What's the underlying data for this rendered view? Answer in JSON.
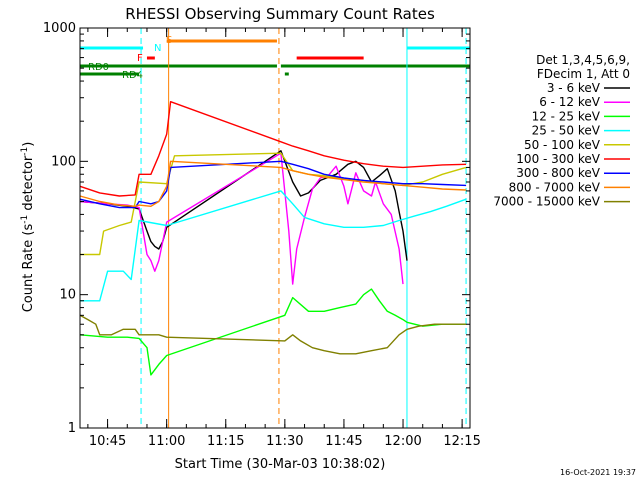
{
  "chart_data": {
    "type": "line",
    "title": "RHESSI Observing Summary Count Rates",
    "xlabel": "Start Time (30-Mar-03 10:38:02)",
    "ylabel_main": "Count Rate (s",
    "ylabel_sup1": "-1",
    "ylabel_mid": " detector",
    "ylabel_sup2": "-1",
    "ylabel_end": ")",
    "footer": "16-Oct-2021 19:37",
    "x_start_min": 638,
    "x_end_min": 737,
    "x_tick_minutes": [
      645,
      660,
      675,
      690,
      705,
      720,
      735
    ],
    "x_tick_labels": [
      "10:45",
      "11:00",
      "11:15",
      "11:30",
      "11:45",
      "12:00",
      "12:15"
    ],
    "y_scale": "log",
    "ylim": [
      1,
      1000
    ],
    "y_tick_values": [
      1,
      10,
      100,
      1000
    ],
    "y_tick_labels": [
      "1",
      "10",
      "100",
      "1000"
    ],
    "legend": {
      "header1": "Det 1,3,4,5,6,9,",
      "header2": "FDecim 1, Att 0",
      "items": [
        {
          "label": "3 - 6 keV",
          "color": "#000000"
        },
        {
          "label": "6 - 12 keV",
          "color": "#ff00ff"
        },
        {
          "label": "12 - 25 keV",
          "color": "#00ff00"
        },
        {
          "label": "25 - 50 keV",
          "color": "#00ffff"
        },
        {
          "label": "50 - 100 keV",
          "color": "#c8c800"
        },
        {
          "label": "100 - 300 keV",
          "color": "#ff0000"
        },
        {
          "label": "300 - 800 keV",
          "color": "#0000ff"
        },
        {
          "label": "800 - 7000 keV",
          "color": "#ff8000"
        },
        {
          "label": "7000 - 15000 keV",
          "color": "#808000"
        }
      ]
    },
    "flags": [
      {
        "label": "",
        "color": "#00ffff",
        "segments": [
          [
            638,
            654
          ],
          [
            721,
            737
          ]
        ]
      },
      {
        "label": "N",
        "color": "#00ffff",
        "segments": []
      },
      {
        "label": "S",
        "color": "#ff8000",
        "segments": [
          [
            660,
            688
          ]
        ]
      },
      {
        "label": "F",
        "color": "#ff0000",
        "segments": [
          [
            655,
            657
          ],
          [
            693,
            710
          ]
        ]
      },
      {
        "label": "RD0",
        "color": "#008000",
        "segments": [
          [
            638,
            688
          ],
          [
            689,
            737
          ]
        ]
      },
      {
        "label": "RD4",
        "color": "#008000",
        "segments": [
          [
            638,
            653
          ],
          [
            690,
            691
          ]
        ]
      }
    ],
    "vlines": [
      {
        "t": 653.5,
        "color": "#00ffff",
        "style": "dashed"
      },
      {
        "t": 660.5,
        "color": "#ff8000",
        "style": "solid"
      },
      {
        "t": 688.5,
        "color": "#ff8000",
        "style": "dashed"
      },
      {
        "t": 721,
        "color": "#00ffff",
        "style": "solid"
      },
      {
        "t": 736,
        "color": "#00ffff",
        "style": "dashed"
      }
    ],
    "series": [
      {
        "name": "3 - 6 keV",
        "color": "#000000",
        "points": [
          [
            638,
            50
          ],
          [
            645,
            48
          ],
          [
            650,
            46
          ],
          [
            653,
            44
          ],
          [
            655,
            30
          ],
          [
            656,
            25
          ],
          [
            657,
            23
          ],
          [
            658,
            22
          ],
          [
            659,
            25
          ],
          [
            660,
            32
          ],
          [
            689,
            120
          ],
          [
            692,
            70
          ],
          [
            694,
            55
          ],
          [
            696,
            58
          ],
          [
            699,
            72
          ],
          [
            703,
            80
          ],
          [
            706,
            95
          ],
          [
            708,
            100
          ],
          [
            710,
            90
          ],
          [
            712,
            70
          ],
          [
            714,
            78
          ],
          [
            716,
            88
          ],
          [
            718,
            60
          ],
          [
            719,
            42
          ],
          [
            720,
            30
          ],
          [
            721,
            18
          ]
        ]
      },
      {
        "name": "6 - 12 keV",
        "color": "#ff00ff",
        "points": [
          [
            638,
            50
          ],
          [
            645,
            48
          ],
          [
            650,
            47
          ],
          [
            653,
            45
          ],
          [
            655,
            20
          ],
          [
            656,
            18
          ],
          [
            657,
            15
          ],
          [
            658,
            18
          ],
          [
            659,
            25
          ],
          [
            660,
            35
          ],
          [
            689,
            115
          ],
          [
            691,
            30
          ],
          [
            692,
            12
          ],
          [
            693,
            22
          ],
          [
            695,
            38
          ],
          [
            697,
            62
          ],
          [
            699,
            75
          ],
          [
            701,
            78
          ],
          [
            703,
            92
          ],
          [
            705,
            65
          ],
          [
            706,
            48
          ],
          [
            708,
            82
          ],
          [
            710,
            60
          ],
          [
            712,
            55
          ],
          [
            713,
            70
          ],
          [
            715,
            48
          ],
          [
            717,
            40
          ],
          [
            719,
            22
          ],
          [
            720,
            12
          ]
        ]
      },
      {
        "name": "12 - 25 keV",
        "color": "#00ff00",
        "points": [
          [
            638,
            5.0
          ],
          [
            645,
            4.8
          ],
          [
            650,
            4.8
          ],
          [
            653,
            4.7
          ],
          [
            655,
            4.0
          ],
          [
            656,
            2.5
          ],
          [
            658,
            3.0
          ],
          [
            660,
            3.5
          ],
          [
            690,
            7.0
          ],
          [
            692,
            9.5
          ],
          [
            696,
            7.5
          ],
          [
            700,
            7.5
          ],
          [
            704,
            8.0
          ],
          [
            708,
            8.5
          ],
          [
            710,
            10
          ],
          [
            712,
            11
          ],
          [
            714,
            9
          ],
          [
            716,
            7.5
          ],
          [
            718,
            7.0
          ],
          [
            720,
            6.5
          ],
          [
            721,
            6.2
          ],
          [
            725,
            5.8
          ],
          [
            730,
            6.0
          ],
          [
            736,
            6.0
          ]
        ]
      },
      {
        "name": "25 - 50 keV",
        "color": "#00ffff",
        "points": [
          [
            638,
            9.0
          ],
          [
            643,
            9.0
          ],
          [
            645,
            15
          ],
          [
            649,
            15
          ],
          [
            651,
            13
          ],
          [
            653,
            36
          ],
          [
            660,
            33
          ],
          [
            689,
            60
          ],
          [
            692,
            48
          ],
          [
            695,
            38
          ],
          [
            700,
            34
          ],
          [
            705,
            32
          ],
          [
            710,
            32
          ],
          [
            715,
            33
          ],
          [
            719,
            36
          ],
          [
            723,
            39
          ],
          [
            727,
            42
          ],
          [
            731,
            46
          ],
          [
            736,
            52
          ]
        ]
      },
      {
        "name": "50 - 100 keV",
        "color": "#c8c800",
        "points": [
          [
            638,
            20
          ],
          [
            643,
            20
          ],
          [
            644,
            30
          ],
          [
            648,
            33
          ],
          [
            651,
            35
          ],
          [
            653,
            70
          ],
          [
            660,
            68
          ],
          [
            662,
            110
          ],
          [
            689,
            115
          ],
          [
            692,
            85
          ],
          [
            696,
            80
          ],
          [
            700,
            78
          ],
          [
            705,
            74
          ],
          [
            710,
            72
          ],
          [
            715,
            68
          ],
          [
            720,
            66
          ],
          [
            725,
            70
          ],
          [
            730,
            80
          ],
          [
            736,
            90
          ]
        ]
      },
      {
        "name": "100 - 300 keV",
        "color": "#ff0000",
        "points": [
          [
            638,
            65
          ],
          [
            643,
            58
          ],
          [
            648,
            55
          ],
          [
            652,
            56
          ],
          [
            653,
            80
          ],
          [
            656,
            80
          ],
          [
            658,
            110
          ],
          [
            660,
            160
          ],
          [
            661,
            280
          ],
          [
            689,
            140
          ],
          [
            692,
            130
          ],
          [
            696,
            120
          ],
          [
            700,
            110
          ],
          [
            705,
            102
          ],
          [
            710,
            96
          ],
          [
            715,
            92
          ],
          [
            720,
            90
          ],
          [
            725,
            92
          ],
          [
            730,
            94
          ],
          [
            736,
            95
          ]
        ]
      },
      {
        "name": "300 - 800 keV",
        "color": "#0000ff",
        "points": [
          [
            638,
            52
          ],
          [
            643,
            48
          ],
          [
            648,
            45
          ],
          [
            652,
            45
          ],
          [
            653,
            50
          ],
          [
            656,
            48
          ],
          [
            658,
            50
          ],
          [
            660,
            60
          ],
          [
            661,
            90
          ],
          [
            689,
            100
          ],
          [
            692,
            95
          ],
          [
            696,
            88
          ],
          [
            700,
            80
          ],
          [
            705,
            75
          ],
          [
            710,
            72
          ],
          [
            715,
            70
          ],
          [
            720,
            68
          ],
          [
            725,
            68
          ],
          [
            730,
            67
          ],
          [
            736,
            66
          ]
        ]
      },
      {
        "name": "800 - 7000 keV",
        "color": "#ff8000",
        "points": [
          [
            638,
            55
          ],
          [
            643,
            50
          ],
          [
            648,
            47
          ],
          [
            652,
            46
          ],
          [
            653,
            47
          ],
          [
            656,
            46
          ],
          [
            658,
            50
          ],
          [
            660,
            65
          ],
          [
            661,
            100
          ],
          [
            689,
            90
          ],
          [
            692,
            85
          ],
          [
            696,
            80
          ],
          [
            700,
            76
          ],
          [
            705,
            73
          ],
          [
            710,
            70
          ],
          [
            715,
            68
          ],
          [
            720,
            66
          ],
          [
            725,
            64
          ],
          [
            730,
            62
          ],
          [
            736,
            61
          ]
        ]
      },
      {
        "name": "7000 - 15000 keV",
        "color": "#808000",
        "points": [
          [
            638,
            7.0
          ],
          [
            640,
            6.5
          ],
          [
            642,
            6.0
          ],
          [
            643,
            5.0
          ],
          [
            646,
            5.0
          ],
          [
            649,
            5.5
          ],
          [
            652,
            5.5
          ],
          [
            653,
            5.0
          ],
          [
            656,
            5.0
          ],
          [
            658,
            5.0
          ],
          [
            660,
            4.8
          ],
          [
            690,
            4.5
          ],
          [
            692,
            5.0
          ],
          [
            694,
            4.5
          ],
          [
            697,
            4.0
          ],
          [
            700,
            3.8
          ],
          [
            704,
            3.6
          ],
          [
            708,
            3.6
          ],
          [
            712,
            3.8
          ],
          [
            716,
            4.0
          ],
          [
            719,
            5.0
          ],
          [
            721,
            5.5
          ],
          [
            724,
            5.8
          ],
          [
            728,
            6.0
          ],
          [
            732,
            6.0
          ],
          [
            736,
            6.0
          ]
        ]
      }
    ]
  }
}
